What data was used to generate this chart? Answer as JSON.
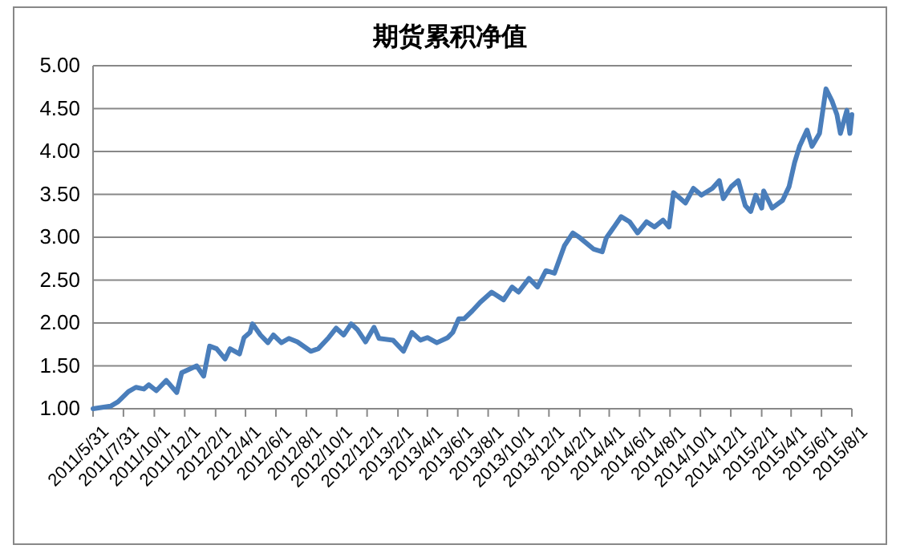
{
  "chart_data": {
    "type": "line",
    "title": "期货累积净值",
    "grid": "y",
    "line_style": "solid",
    "marker": "none",
    "xlim": [
      "2011-05-31",
      "2015-08-01"
    ],
    "xticks": [
      {
        "value": "2011-05-31",
        "label": "2011/5/31"
      },
      {
        "value": "2011-07-31",
        "label": "2011/7/31"
      },
      {
        "value": "2011-10-01",
        "label": "2011/10/1"
      },
      {
        "value": "2011-12-01",
        "label": "2011/12/1"
      },
      {
        "value": "2012-02-01",
        "label": "2012/2/1"
      },
      {
        "value": "2012-04-01",
        "label": "2012/4/1"
      },
      {
        "value": "2012-06-01",
        "label": "2012/6/1"
      },
      {
        "value": "2012-08-01",
        "label": "2012/8/1"
      },
      {
        "value": "2012-10-01",
        "label": "2012/10/1"
      },
      {
        "value": "2012-12-01",
        "label": "2012/12/1"
      },
      {
        "value": "2013-02-01",
        "label": "2013/2/1"
      },
      {
        "value": "2013-04-01",
        "label": "2013/4/1"
      },
      {
        "value": "2013-06-01",
        "label": "2013/6/1"
      },
      {
        "value": "2013-08-01",
        "label": "2013/8/1"
      },
      {
        "value": "2013-10-01",
        "label": "2013/10/1"
      },
      {
        "value": "2013-12-01",
        "label": "2013/12/1"
      },
      {
        "value": "2014-02-01",
        "label": "2014/2/1"
      },
      {
        "value": "2014-04-01",
        "label": "2014/4/1"
      },
      {
        "value": "2014-06-01",
        "label": "2014/6/1"
      },
      {
        "value": "2014-08-01",
        "label": "2014/8/1"
      },
      {
        "value": "2014-10-01",
        "label": "2014/10/1"
      },
      {
        "value": "2014-12-01",
        "label": "2014/12/1"
      },
      {
        "value": "2015-02-01",
        "label": "2015/2/1"
      },
      {
        "value": "2015-04-01",
        "label": "2015/4/1"
      },
      {
        "value": "2015-06-01",
        "label": "2015/6/1"
      },
      {
        "value": "2015-08-01",
        "label": "2015/8/1"
      }
    ],
    "ylim": [
      1,
      5
    ],
    "yticks": [
      {
        "value": 1,
        "label": "1.00"
      },
      {
        "value": 1.5,
        "label": "1.50"
      },
      {
        "value": 2,
        "label": "2.00"
      },
      {
        "value": 2.5,
        "label": "2.50"
      },
      {
        "value": 3,
        "label": "3.00"
      },
      {
        "value": 3.5,
        "label": "3.50"
      },
      {
        "value": 4,
        "label": "4.00"
      },
      {
        "value": 4.5,
        "label": "4.50"
      },
      {
        "value": 5,
        "label": "5.00"
      }
    ],
    "x": [
      "2011-05-31",
      "2011-07-05",
      "2011-07-20",
      "2011-08-10",
      "2011-08-25",
      "2011-09-10",
      "2011-09-20",
      "2011-10-05",
      "2011-10-25",
      "2011-11-15",
      "2011-11-25",
      "2011-12-10",
      "2011-12-25",
      "2012-01-08",
      "2012-01-20",
      "2012-02-03",
      "2012-02-20",
      "2012-03-01",
      "2012-03-20",
      "2012-03-29",
      "2012-04-10",
      "2012-04-15",
      "2012-05-01",
      "2012-05-16",
      "2012-05-27",
      "2012-06-12",
      "2012-06-27",
      "2012-07-14",
      "2012-08-10",
      "2012-08-25",
      "2012-09-15",
      "2012-09-30",
      "2012-10-15",
      "2012-10-30",
      "2012-11-12",
      "2012-11-28",
      "2012-12-15",
      "2012-12-25",
      "2013-01-22",
      "2013-02-12",
      "2013-03-01",
      "2013-03-18",
      "2013-04-01",
      "2013-04-20",
      "2013-05-12",
      "2013-05-22",
      "2013-06-03",
      "2013-06-14",
      "2013-06-30",
      "2013-07-16",
      "2013-08-08",
      "2013-09-01",
      "2013-09-18",
      "2013-10-01",
      "2013-10-22",
      "2013-11-08",
      "2013-11-25",
      "2013-12-12",
      "2014-01-01",
      "2014-01-18",
      "2014-02-02",
      "2014-03-01",
      "2014-03-18",
      "2014-03-26",
      "2014-04-25",
      "2014-05-12",
      "2014-05-28",
      "2014-06-15",
      "2014-07-01",
      "2014-07-18",
      "2014-07-30",
      "2014-08-08",
      "2014-09-01",
      "2014-09-17",
      "2014-10-03",
      "2014-10-25",
      "2014-11-08",
      "2014-11-16",
      "2014-12-02",
      "2014-12-16",
      "2014-12-30",
      "2015-01-10",
      "2015-01-20",
      "2015-02-01",
      "2015-02-05",
      "2015-02-22",
      "2015-03-15",
      "2015-03-28",
      "2015-04-08",
      "2015-04-18",
      "2015-05-03",
      "2015-05-13",
      "2015-05-28",
      "2015-06-10",
      "2015-06-22",
      "2015-07-02",
      "2015-07-09",
      "2015-07-22",
      "2015-07-28",
      "2015-08-01"
    ],
    "series": [
      {
        "color": "#4a7ebb",
        "values": [
          1.0,
          1.03,
          1.08,
          1.2,
          1.25,
          1.23,
          1.28,
          1.21,
          1.33,
          1.19,
          1.42,
          1.46,
          1.5,
          1.38,
          1.73,
          1.7,
          1.58,
          1.7,
          1.64,
          1.83,
          1.89,
          1.99,
          1.86,
          1.77,
          1.86,
          1.77,
          1.82,
          1.78,
          1.67,
          1.7,
          1.83,
          1.94,
          1.86,
          1.99,
          1.92,
          1.78,
          1.95,
          1.82,
          1.8,
          1.67,
          1.89,
          1.8,
          1.83,
          1.77,
          1.83,
          1.89,
          2.05,
          2.05,
          2.14,
          2.24,
          2.36,
          2.27,
          2.42,
          2.36,
          2.52,
          2.42,
          2.61,
          2.58,
          2.9,
          3.05,
          2.99,
          2.86,
          2.83,
          2.99,
          3.24,
          3.18,
          3.05,
          3.18,
          3.12,
          3.2,
          3.12,
          3.52,
          3.4,
          3.57,
          3.49,
          3.57,
          3.66,
          3.45,
          3.59,
          3.66,
          3.37,
          3.3,
          3.49,
          3.34,
          3.54,
          3.34,
          3.43,
          3.59,
          3.87,
          4.06,
          4.25,
          4.06,
          4.21,
          4.73,
          4.59,
          4.43,
          4.21,
          4.48,
          4.21,
          4.43
        ]
      }
    ]
  }
}
